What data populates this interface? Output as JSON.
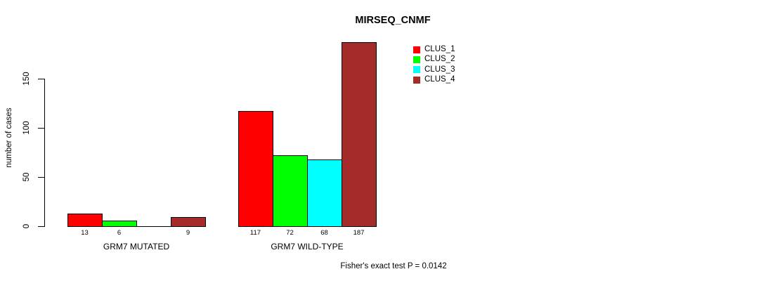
{
  "chart_data": {
    "type": "bar",
    "title": "MIRSEQ_CNMF",
    "ylabel": "number of cases",
    "xlabel": "",
    "yticks": [
      0,
      50,
      100,
      150
    ],
    "ylim": [
      0,
      187
    ],
    "grid": false,
    "legend_position": "top-right",
    "categories": [
      "GRM7 MUTATED",
      "GRM7 WILD-TYPE"
    ],
    "series": [
      {
        "name": "CLUS_1",
        "color": "#ff0000",
        "values": [
          13,
          117
        ]
      },
      {
        "name": "CLUS_2",
        "color": "#00ff00",
        "values": [
          6,
          72
        ]
      },
      {
        "name": "CLUS_3",
        "color": "#00ffff",
        "values": [
          0,
          68
        ]
      },
      {
        "name": "CLUS_4",
        "color": "#a52a2a",
        "values": [
          9,
          187
        ]
      }
    ],
    "bar_value_labels": [
      [
        "13",
        "6",
        "",
        "9"
      ],
      [
        "117",
        "72",
        "68",
        "187"
      ]
    ],
    "annotation": "Fisher's exact test P = 0.0142",
    "axis_color": "#000000",
    "bar_border_color": "#000000",
    "background_color": "#ffffff"
  }
}
